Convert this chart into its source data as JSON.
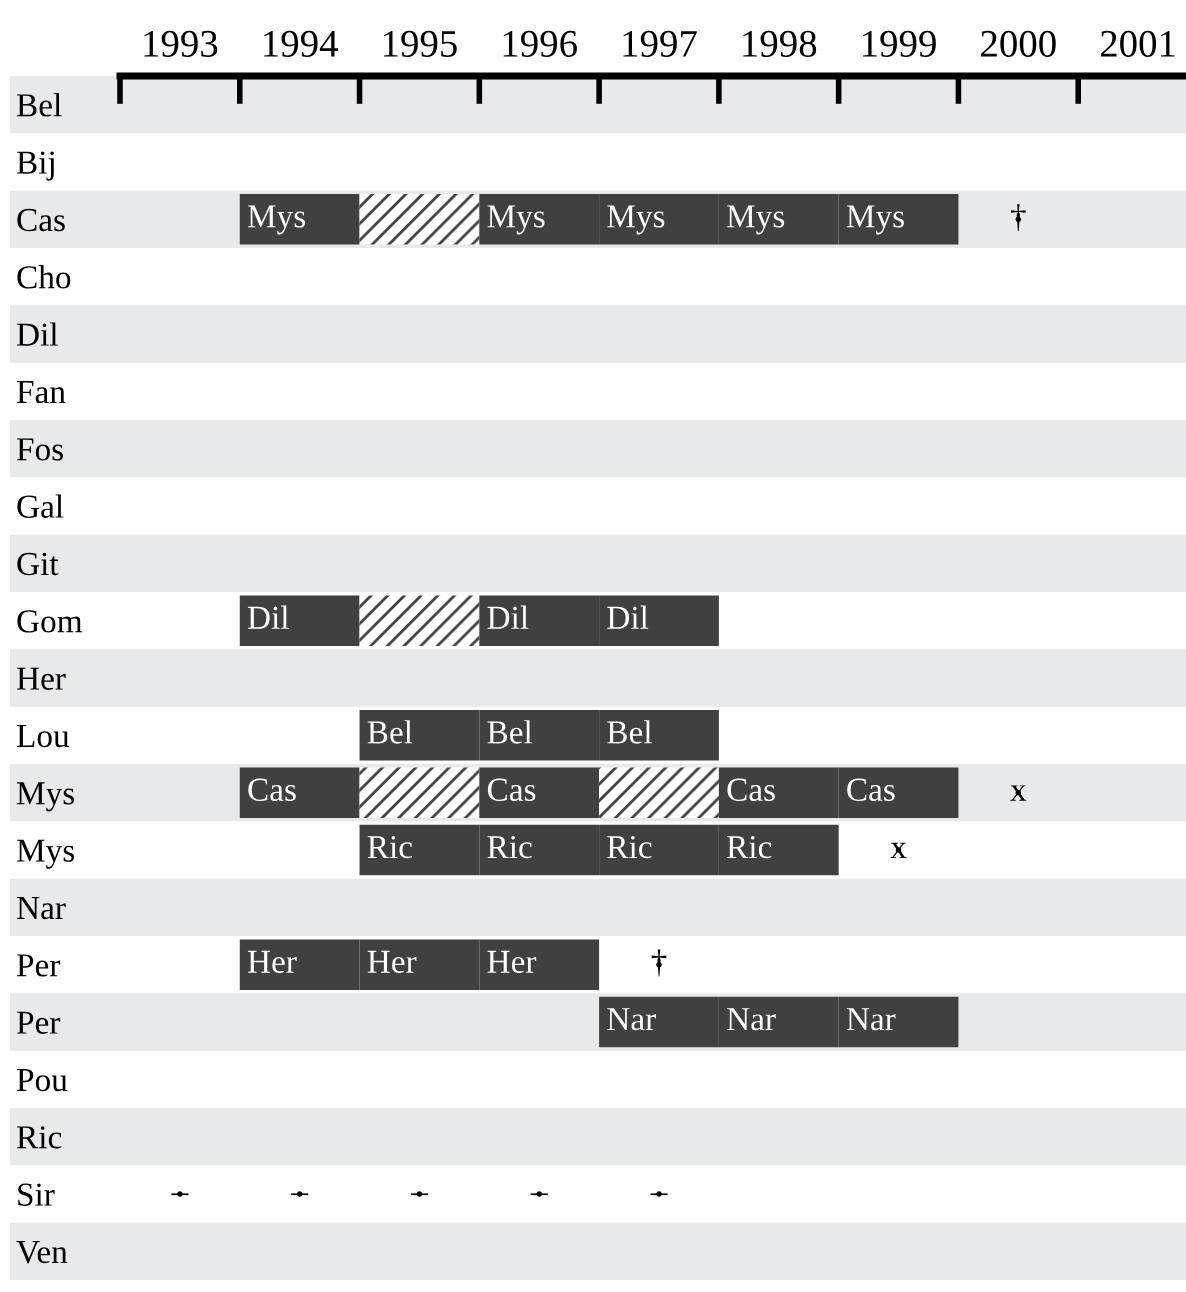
{
  "chart_data": {
    "type": "bar",
    "orientation": "horizontal",
    "categories": [
      "Bel",
      "Bij",
      "Cas",
      "Cho",
      "Dil",
      "Fan",
      "Fos",
      "Gal",
      "Git",
      "Gom",
      "Her",
      "Lou",
      "Mys",
      "Mys",
      "Nar",
      "Per",
      "Per",
      "Pou",
      "Ric",
      "Sir",
      "Ven"
    ],
    "xlim": [
      1992.5,
      2001.4
    ],
    "xticks": [
      {
        "value": 1992.5,
        "label": null
      },
      1993,
      {
        "value": 1993.5,
        "label": null
      },
      1994,
      {
        "value": 1994.5,
        "label": null
      },
      1995,
      {
        "value": 1995.5,
        "label": null
      },
      1996,
      {
        "value": 1996.5,
        "label": null
      },
      1997,
      {
        "value": 1997.5,
        "label": null
      },
      1998,
      {
        "value": 1998.5,
        "label": null
      },
      1999,
      {
        "value": 1999.5,
        "label": null
      },
      2000,
      {
        "value": 2000.5,
        "label": null
      },
      2001
    ],
    "series": [
      {
        "base": [
          null,
          null,
          1993.5,
          null,
          null,
          null,
          null,
          null,
          null,
          1993.5,
          null,
          null,
          1993.5,
          null,
          null,
          1993.5,
          null,
          null,
          null,
          null,
          null
        ],
        "values": [
          null,
          null,
          1,
          null,
          null,
          null,
          null,
          null,
          null,
          1,
          null,
          null,
          1,
          null,
          null,
          1,
          null,
          null,
          null,
          null,
          null
        ],
        "colors": [
          null,
          null,
          "#404040",
          null,
          null,
          null,
          null,
          null,
          null,
          "#404040",
          null,
          null,
          "#404040",
          null,
          null,
          "#404040",
          null,
          null,
          null,
          null,
          null
        ],
        "value_labels": [
          null,
          null,
          "Mys",
          null,
          null,
          null,
          null,
          null,
          null,
          "Dil",
          null,
          null,
          "Cas",
          null,
          null,
          "Her",
          null,
          null,
          null,
          null,
          null
        ]
      },
      {
        "base": [
          null,
          null,
          1994.5,
          null,
          null,
          null,
          null,
          null,
          null,
          1994.5,
          null,
          1994.5,
          1994.5,
          1994.5,
          null,
          1994.5,
          null,
          null,
          null,
          null,
          null
        ],
        "values": [
          null,
          null,
          1,
          null,
          null,
          null,
          null,
          null,
          null,
          1,
          null,
          1,
          1,
          1,
          null,
          1,
          null,
          null,
          null,
          null,
          null
        ],
        "colors": [
          null,
          null,
          "#ffffff",
          null,
          null,
          null,
          null,
          null,
          null,
          "#ffffff",
          null,
          "#404040",
          "#ffffff",
          "#404040",
          null,
          "#404040",
          null,
          null,
          null,
          null,
          null
        ],
        "value_labels": [
          null,
          null,
          null,
          null,
          null,
          null,
          null,
          null,
          null,
          null,
          null,
          "Bel",
          null,
          "Ric",
          null,
          "Her",
          null,
          null,
          null,
          null,
          null
        ]
      },
      {
        "base": [
          null,
          null,
          1995.5,
          null,
          null,
          null,
          null,
          null,
          null,
          1995.5,
          null,
          1995.5,
          1995.5,
          1995.5,
          null,
          1995.5,
          null,
          null,
          null,
          null,
          null
        ],
        "values": [
          null,
          null,
          1,
          null,
          null,
          null,
          null,
          null,
          null,
          1,
          null,
          1,
          1,
          1,
          null,
          1,
          null,
          null,
          null,
          null,
          null
        ],
        "colors": [
          null,
          null,
          "#404040",
          null,
          null,
          null,
          null,
          null,
          null,
          "#404040",
          null,
          "#404040",
          "#404040",
          "#404040",
          null,
          "#404040",
          null,
          null,
          null,
          null,
          null
        ],
        "value_labels": [
          null,
          null,
          "Mys",
          null,
          null,
          null,
          null,
          null,
          null,
          "Dil",
          null,
          "Bel",
          "Cas",
          "Ric",
          null,
          "Her",
          null,
          null,
          null,
          null,
          null
        ]
      },
      {
        "base": [
          null,
          null,
          1996.5,
          null,
          null,
          null,
          null,
          null,
          null,
          1996.5,
          null,
          1996.5,
          1996.5,
          1996.5,
          null,
          null,
          1996.5,
          null,
          null,
          null,
          null
        ],
        "values": [
          null,
          null,
          1,
          null,
          null,
          null,
          null,
          null,
          null,
          1,
          null,
          1,
          1,
          1,
          null,
          null,
          1,
          null,
          null,
          null,
          null
        ],
        "colors": [
          null,
          null,
          "#404040",
          null,
          null,
          null,
          null,
          null,
          null,
          "#404040",
          null,
          "#404040",
          "#ffffff",
          "#404040",
          null,
          null,
          "#404040",
          null,
          null,
          null,
          null
        ],
        "value_labels": [
          null,
          null,
          "Mys",
          null,
          null,
          null,
          null,
          null,
          null,
          "Dil",
          null,
          "Bel",
          null,
          "Ric",
          null,
          null,
          "Nar",
          null,
          null,
          null,
          null
        ]
      },
      {
        "base": [
          null,
          null,
          1997.5,
          null,
          null,
          null,
          null,
          null,
          null,
          null,
          null,
          null,
          1997.5,
          1997.5,
          null,
          null,
          1997.5,
          null,
          null,
          null,
          null
        ],
        "values": [
          null,
          null,
          1,
          null,
          null,
          null,
          null,
          null,
          null,
          null,
          null,
          null,
          1,
          1,
          null,
          null,
          1,
          null,
          null,
          null,
          null
        ],
        "colors": [
          null,
          null,
          "#404040",
          null,
          null,
          null,
          null,
          null,
          null,
          null,
          null,
          null,
          "#404040",
          "#404040",
          null,
          null,
          "#404040",
          null,
          null,
          null,
          null
        ],
        "value_labels": [
          null,
          null,
          "Mys",
          null,
          null,
          null,
          null,
          null,
          null,
          null,
          null,
          null,
          "Cas",
          "Ric",
          null,
          null,
          "Nar",
          null,
          null,
          null,
          null
        ]
      },
      {
        "base": [
          null,
          null,
          1998.5,
          null,
          null,
          null,
          null,
          null,
          null,
          null,
          null,
          null,
          1998.5,
          null,
          null,
          null,
          1998.5,
          null,
          null,
          null,
          null
        ],
        "values": [
          null,
          null,
          1,
          null,
          null,
          null,
          null,
          null,
          null,
          null,
          null,
          null,
          1,
          null,
          null,
          null,
          1,
          null,
          null,
          null,
          null
        ],
        "colors": [
          null,
          null,
          "#404040",
          null,
          null,
          null,
          null,
          null,
          null,
          null,
          null,
          null,
          "#404040",
          null,
          null,
          null,
          "#404040",
          null,
          null,
          null,
          null
        ],
        "value_labels": [
          null,
          null,
          "Mys",
          null,
          null,
          null,
          null,
          null,
          null,
          null,
          null,
          null,
          "Cas",
          null,
          null,
          null,
          "Nar",
          null,
          null,
          null,
          null
        ]
      },
      {
        "type": "scatter",
        "marker": "none",
        "color": "#000000",
        "values": [
          null,
          null,
          2000,
          null,
          null,
          null,
          null,
          null,
          null,
          null,
          null,
          null,
          2000,
          1999,
          null,
          1997,
          null,
          null,
          null,
          1993,
          null
        ],
        "value_labels": [
          null,
          null,
          "†",
          null,
          null,
          null,
          null,
          null,
          null,
          null,
          null,
          null,
          "x",
          "x",
          null,
          "†",
          null,
          null,
          null,
          "–",
          null
        ]
      },
      {
        "type": "scatter",
        "marker": "none",
        "color": "#000000",
        "values": [
          null,
          null,
          null,
          null,
          null,
          null,
          null,
          null,
          null,
          null,
          null,
          null,
          null,
          null,
          null,
          null,
          null,
          null,
          null,
          1994,
          null
        ],
        "value_labels": [
          null,
          null,
          null,
          null,
          null,
          null,
          null,
          null,
          null,
          null,
          null,
          null,
          null,
          null,
          null,
          null,
          null,
          null,
          null,
          "–",
          null
        ]
      },
      {
        "type": "scatter",
        "marker": "none",
        "color": "#000000",
        "values": [
          null,
          null,
          null,
          null,
          null,
          null,
          null,
          null,
          null,
          null,
          null,
          null,
          null,
          null,
          null,
          null,
          null,
          null,
          null,
          1995,
          null
        ],
        "value_labels": [
          null,
          null,
          null,
          null,
          null,
          null,
          null,
          null,
          null,
          null,
          null,
          null,
          null,
          null,
          null,
          null,
          null,
          null,
          null,
          "–",
          null
        ]
      },
      {
        "type": "scatter",
        "marker": "none",
        "color": "#000000",
        "values": [
          null,
          null,
          null,
          null,
          null,
          null,
          null,
          null,
          null,
          null,
          null,
          null,
          null,
          null,
          null,
          null,
          null,
          null,
          null,
          1996,
          null
        ],
        "value_labels": [
          null,
          null,
          null,
          null,
          null,
          null,
          null,
          null,
          null,
          null,
          null,
          null,
          null,
          null,
          null,
          null,
          null,
          null,
          null,
          "–",
          null
        ]
      },
      {
        "type": "scatter",
        "marker": "none",
        "color": "#000000",
        "values": [
          null,
          null,
          null,
          null,
          null,
          null,
          null,
          null,
          null,
          null,
          null,
          null,
          null,
          null,
          null,
          null,
          null,
          null,
          null,
          1997,
          null
        ],
        "value_labels": [
          null,
          null,
          null,
          null,
          null,
          null,
          null,
          null,
          null,
          null,
          null,
          null,
          null,
          null,
          null,
          null,
          null,
          null,
          null,
          "–",
          null
        ]
      }
    ]
  }
}
